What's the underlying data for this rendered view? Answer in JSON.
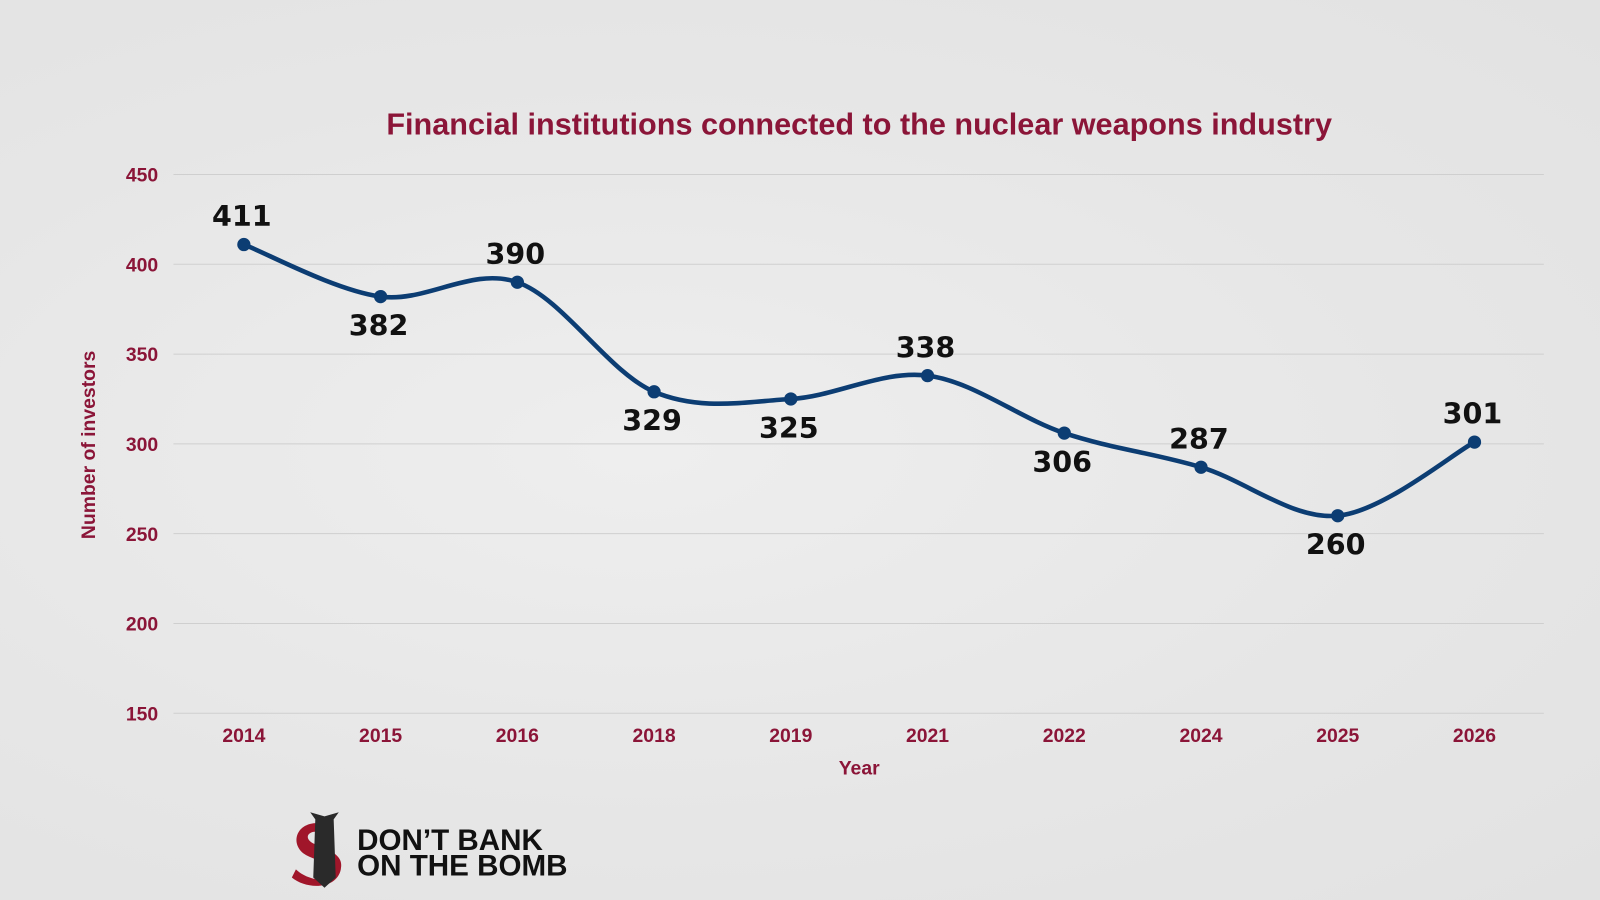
{
  "chart_data": {
    "type": "line",
    "title": "Financial institutions connected to the nuclear weapons industry",
    "xlabel": "Year",
    "ylabel": "Number of investors",
    "categories": [
      "2014",
      "2015",
      "2016",
      "2018",
      "2019",
      "2021",
      "2022",
      "2024",
      "2025",
      "2026"
    ],
    "values": [
      411,
      382,
      390,
      329,
      325,
      338,
      306,
      287,
      260,
      301
    ],
    "ylim": [
      150,
      450
    ],
    "yticks": [
      150,
      200,
      250,
      300,
      350,
      400,
      450
    ],
    "grid": true,
    "smooth": true,
    "colors": {
      "line": "#0c3d73",
      "text_accent": "#8b1538"
    }
  },
  "logo": {
    "line1": "DON’T BANK",
    "line2": "ON THE BOMB"
  }
}
